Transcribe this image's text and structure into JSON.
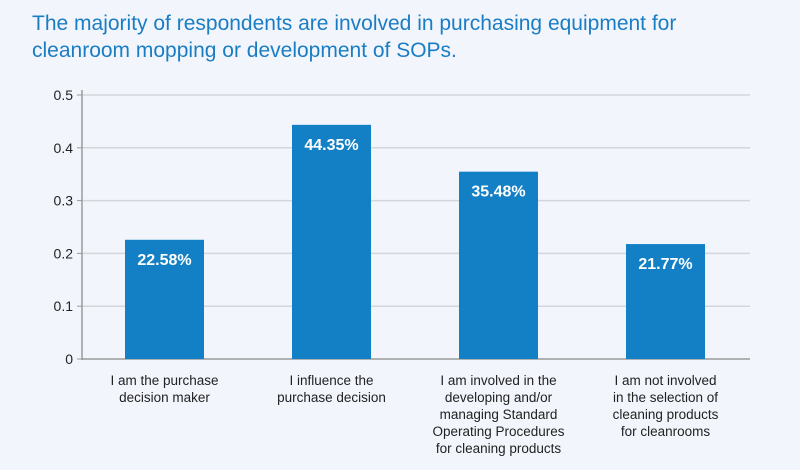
{
  "title": "The majority of respondents are involved in purchasing equipment for cleanroom mopping or development of SOPs.",
  "colors": {
    "bar": "#1380c6",
    "title": "#1a7dc4",
    "grid": "#d3d7dc",
    "axis": "#9a9a9a"
  },
  "chart_data": {
    "type": "bar",
    "title": "The majority of respondents are involved in purchasing equipment for cleanroom mopping or development of SOPs.",
    "xlabel": "",
    "ylabel": "",
    "ylim": [
      0,
      0.5
    ],
    "yticks": [
      0,
      0.1,
      0.2,
      0.3,
      0.4,
      0.5
    ],
    "ytick_labels": [
      "0",
      "0.1",
      "0.2",
      "0.3",
      "0.4",
      "0.5"
    ],
    "grid": true,
    "categories": [
      "I am the purchase\ndecision maker",
      "I influence the\npurchase decision",
      "I am involved in the\ndeveloping and/or\nmanaging Standard\nOperating Procedures\nfor cleaning products",
      "I am not involved\nin the selection of\ncleaning products\nfor cleanrooms"
    ],
    "values": [
      0.2258,
      0.4435,
      0.3548,
      0.2177
    ],
    "data_labels": [
      "22.58%",
      "44.35%",
      "35.48%",
      "21.77%"
    ]
  }
}
